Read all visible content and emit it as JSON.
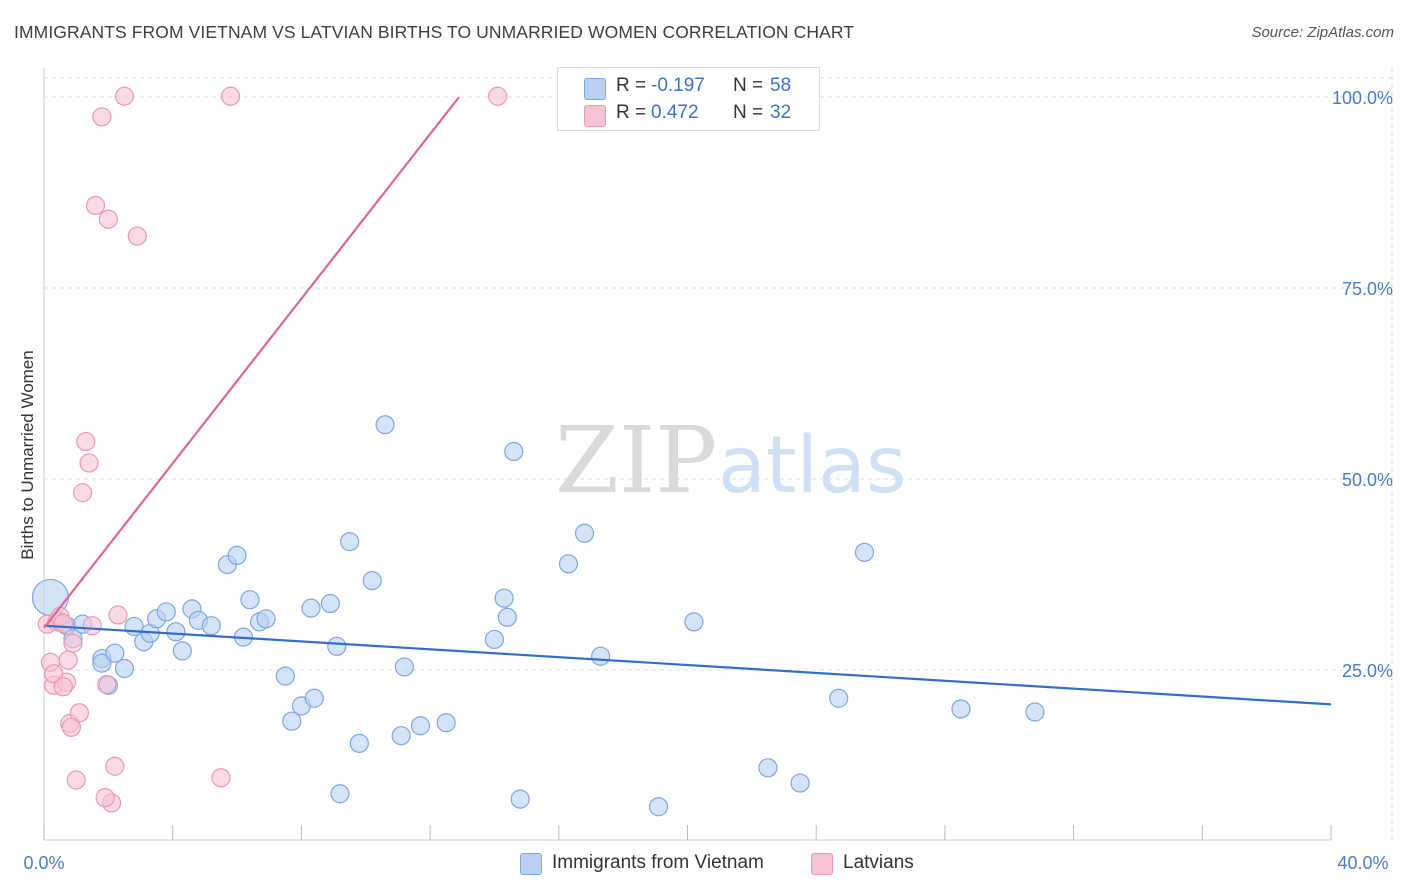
{
  "title": "IMMIGRANTS FROM VIETNAM VS LATVIAN BIRTHS TO UNMARRIED WOMEN CORRELATION CHART",
  "source": "Source: ZipAtlas.com",
  "watermark": {
    "zip": "ZIP",
    "atlas": "atlas"
  },
  "colors": {
    "blue_fill": "#b9d0f2",
    "blue_stroke": "#7fa6df",
    "blue_line": "#2f6fcb",
    "pink_fill": "#f7c3d3",
    "pink_stroke": "#eb98b3",
    "pink_line": "#e0668f",
    "tick_text": "#4a7cc9",
    "grid": "#dddddd"
  },
  "legend": {
    "r_label": "R =",
    "n_label": "N =",
    "items": [
      {
        "r": "-0.197",
        "n": "58"
      },
      {
        "r": "0.472",
        "n": "32"
      }
    ]
  },
  "chart_data": {
    "type": "scatter",
    "title": "IMMIGRANTS FROM VIETNAM VS LATVIAN BIRTHS TO UNMARRIED WOMEN CORRELATION CHART",
    "xlabel": "",
    "ylabel": "Births to Unmarried Women",
    "xlim": [
      0,
      40
    ],
    "ylim": [
      0,
      102
    ],
    "x_tick_labels": [
      "0.0%",
      "40.0%"
    ],
    "y_ticks": [
      25,
      50,
      75,
      100
    ],
    "y_tick_labels": [
      "25.0%",
      "50.0%",
      "75.0%",
      "100.0%"
    ],
    "grid": true,
    "legend_position": "top-center",
    "series": [
      {
        "name": "Immigrants from Vietnam",
        "color": "#b9d0f2",
        "trend": {
          "x": [
            0,
            40
          ],
          "y": [
            30.8,
            20.5
          ]
        },
        "points": [
          [
            0.2,
            34.5
          ],
          [
            0.5,
            31.3
          ],
          [
            0.7,
            30.8
          ],
          [
            1.2,
            31.0
          ],
          [
            1.8,
            26.5
          ],
          [
            0.9,
            29.1
          ],
          [
            1.8,
            25.9
          ],
          [
            2.0,
            23.0
          ],
          [
            2.2,
            27.2
          ],
          [
            2.5,
            25.2
          ],
          [
            2.8,
            30.7
          ],
          [
            3.1,
            28.7
          ],
          [
            3.3,
            29.8
          ],
          [
            3.5,
            31.7
          ],
          [
            3.8,
            32.6
          ],
          [
            4.1,
            30.0
          ],
          [
            4.3,
            27.5
          ],
          [
            4.6,
            33.0
          ],
          [
            4.8,
            31.5
          ],
          [
            5.2,
            30.8
          ],
          [
            5.7,
            38.8
          ],
          [
            6.0,
            40.0
          ],
          [
            6.2,
            29.3
          ],
          [
            6.4,
            34.2
          ],
          [
            6.7,
            31.3
          ],
          [
            6.9,
            31.7
          ],
          [
            7.5,
            24.2
          ],
          [
            7.7,
            18.3
          ],
          [
            8.0,
            20.3
          ],
          [
            8.3,
            33.1
          ],
          [
            8.4,
            21.3
          ],
          [
            8.9,
            33.7
          ],
          [
            9.1,
            28.1
          ],
          [
            9.2,
            8.8
          ],
          [
            9.5,
            41.8
          ],
          [
            9.8,
            15.4
          ],
          [
            10.2,
            36.7
          ],
          [
            10.6,
            57.1
          ],
          [
            11.1,
            16.4
          ],
          [
            11.2,
            25.4
          ],
          [
            11.7,
            17.7
          ],
          [
            12.5,
            18.1
          ],
          [
            14.0,
            29.0
          ],
          [
            14.3,
            34.4
          ],
          [
            14.4,
            31.9
          ],
          [
            14.6,
            53.6
          ],
          [
            14.8,
            8.1
          ],
          [
            16.3,
            38.9
          ],
          [
            16.8,
            42.9
          ],
          [
            17.3,
            26.8
          ],
          [
            19.1,
            7.1
          ],
          [
            20.2,
            31.3
          ],
          [
            22.5,
            12.2
          ],
          [
            23.5,
            10.2
          ],
          [
            24.7,
            21.3
          ],
          [
            25.5,
            40.4
          ],
          [
            28.5,
            19.9
          ],
          [
            30.8,
            19.5
          ]
        ]
      },
      {
        "name": "Latvians",
        "color": "#f7c3d3",
        "trend": {
          "x": [
            0,
            12.9
          ],
          "y": [
            30.5,
            100.0
          ]
        },
        "points": [
          [
            0.1,
            31.0
          ],
          [
            0.2,
            26.0
          ],
          [
            0.3,
            23.0
          ],
          [
            0.4,
            31.3
          ],
          [
            0.5,
            32.0
          ],
          [
            0.6,
            31.1
          ],
          [
            0.7,
            23.4
          ],
          [
            0.8,
            18.0
          ],
          [
            0.9,
            28.5
          ],
          [
            1.0,
            10.6
          ],
          [
            1.1,
            19.4
          ],
          [
            1.2,
            48.2
          ],
          [
            1.3,
            54.9
          ],
          [
            1.4,
            52.1
          ],
          [
            1.5,
            30.8
          ],
          [
            1.6,
            85.8
          ],
          [
            1.8,
            97.4
          ],
          [
            2.0,
            84.0
          ],
          [
            2.1,
            7.6
          ],
          [
            2.2,
            12.4
          ],
          [
            2.3,
            32.2
          ],
          [
            2.5,
            100.1
          ],
          [
            2.9,
            81.8
          ],
          [
            5.5,
            10.9
          ],
          [
            5.8,
            100.1
          ],
          [
            14.1,
            100.1
          ],
          [
            0.3,
            24.5
          ],
          [
            0.6,
            22.8
          ],
          [
            0.75,
            26.3
          ],
          [
            0.85,
            17.5
          ],
          [
            1.9,
            8.3
          ],
          [
            1.95,
            23.1
          ]
        ]
      }
    ]
  }
}
